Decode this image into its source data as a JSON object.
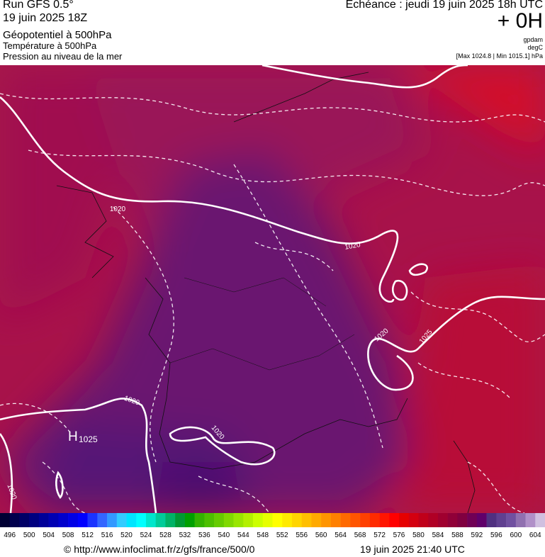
{
  "header": {
    "run": "Run GFS 0.5°",
    "date": "19 juin 2025 18Z",
    "field_1": "Géopotentiel à 500hPa",
    "field_2": "Température à 500hPa",
    "field_3": "Pression au niveau de la mer",
    "forecast": "Echéance : jeudi 19 juin 2025 18h UTC",
    "lead": "+ 0H",
    "unit_1": "gpdam",
    "unit_2": "degC",
    "range": "[Max 1024.8 | Min 1015.1] hPa"
  },
  "map": {
    "isobar_labels": [
      "1020",
      "1020",
      "1020",
      "1025",
      "1020",
      "1020",
      "1020"
    ],
    "high": {
      "symbol": "H",
      "value": "1025"
    }
  },
  "colorbar": {
    "stops": [
      {
        "label": "496",
        "colors": [
          "#000033",
          "#00004d"
        ]
      },
      {
        "label": "500",
        "colors": [
          "#000066",
          "#000080"
        ]
      },
      {
        "label": "504",
        "colors": [
          "#000099",
          "#0000b3"
        ]
      },
      {
        "label": "508",
        "colors": [
          "#0000cc",
          "#0000e6"
        ]
      },
      {
        "label": "512",
        "colors": [
          "#0000ff",
          "#1a33ff"
        ]
      },
      {
        "label": "516",
        "colors": [
          "#3366ff",
          "#3399ff"
        ]
      },
      {
        "label": "520",
        "colors": [
          "#33ccff",
          "#00e5ff"
        ]
      },
      {
        "label": "524",
        "colors": [
          "#00ffff",
          "#00e6cc"
        ]
      },
      {
        "label": "528",
        "colors": [
          "#00cc99",
          "#00b366"
        ]
      },
      {
        "label": "532",
        "colors": [
          "#009933",
          "#00a000"
        ]
      },
      {
        "label": "536",
        "colors": [
          "#33b300",
          "#4dc000"
        ]
      },
      {
        "label": "540",
        "colors": [
          "#66cc00",
          "#80d900"
        ]
      },
      {
        "label": "544",
        "colors": [
          "#99e600",
          "#b3f000"
        ]
      },
      {
        "label": "548",
        "colors": [
          "#ccff00",
          "#e6ff00"
        ]
      },
      {
        "label": "552",
        "colors": [
          "#ffff00",
          "#ffea00"
        ]
      },
      {
        "label": "556",
        "colors": [
          "#ffd500",
          "#ffbf00"
        ]
      },
      {
        "label": "560",
        "colors": [
          "#ffaa00",
          "#ff9500"
        ]
      },
      {
        "label": "564",
        "colors": [
          "#ff8000",
          "#ff6a00"
        ]
      },
      {
        "label": "568",
        "colors": [
          "#ff5500",
          "#ff4000"
        ]
      },
      {
        "label": "572",
        "colors": [
          "#ff2b00",
          "#ff1500"
        ]
      },
      {
        "label": "576",
        "colors": [
          "#ff0000",
          "#e60000"
        ]
      },
      {
        "label": "580",
        "colors": [
          "#d40010",
          "#c0001a"
        ]
      },
      {
        "label": "584",
        "colors": [
          "#b00025",
          "#a0002f"
        ]
      },
      {
        "label": "588",
        "colors": [
          "#900038",
          "#800040"
        ]
      },
      {
        "label": "592",
        "colors": [
          "#700055",
          "#60006a"
        ]
      },
      {
        "label": "596",
        "colors": [
          "#503080",
          "#604090"
        ]
      },
      {
        "label": "600",
        "colors": [
          "#7050a0",
          "#9070b0"
        ]
      },
      {
        "label": "604",
        "colors": [
          "#b090c8",
          "#d0c0e0"
        ]
      }
    ]
  },
  "footer": {
    "url": "© http://www.infoclimat.fr/z/gfs/france/500/0",
    "timestamp": "19 juin 2025 21:40 UTC"
  }
}
